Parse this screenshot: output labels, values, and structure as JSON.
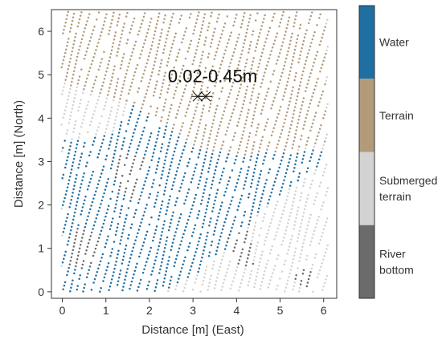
{
  "chart_data": {
    "type": "scatter",
    "title": "",
    "xlabel": "Distance [m] (East)",
    "ylabel": "Distance [m] (North)",
    "xlim": [
      -0.25,
      6.3
    ],
    "ylim": [
      -0.15,
      6.5
    ],
    "x_ticks": [
      0,
      1,
      2,
      3,
      4,
      5,
      6
    ],
    "y_ticks": [
      0,
      1,
      2,
      3,
      4,
      5,
      6
    ],
    "grid": false,
    "legend": {
      "placement": "right colorbar",
      "entries": [
        {
          "label": "Water",
          "color": "#1f6fa3"
        },
        {
          "label": "Terrain",
          "color": "#b39b7a"
        },
        {
          "label": "Submerged\nterrain",
          "color": "#d3d3d3"
        },
        {
          "label": "River\nbottom",
          "color": "#6b6b6b"
        }
      ]
    },
    "annotations": [
      {
        "text": "0.02-0.45m",
        "x": 3.45,
        "y": 4.98
      },
      {
        "marker": "asterisk-pair",
        "x": 3.2,
        "y": 4.5
      }
    ],
    "regions": {
      "terrain": [
        [
          -0.05,
          6.45
        ],
        [
          6.05,
          6.45
        ],
        [
          6.05,
          3.4
        ],
        [
          5.2,
          3.25
        ],
        [
          4.2,
          3.15
        ],
        [
          3.1,
          3.3
        ],
        [
          2.3,
          3.9
        ],
        [
          1.6,
          4.35
        ],
        [
          0.9,
          4.55
        ],
        [
          0.2,
          4.75
        ],
        [
          -0.05,
          4.85
        ]
      ],
      "water": [
        [
          0,
          0
        ],
        [
          2.3,
          0
        ],
        [
          3.2,
          0.5
        ],
        [
          3.8,
          1.0
        ],
        [
          4.6,
          1.9
        ],
        [
          5.5,
          2.6
        ],
        [
          6.1,
          3.0
        ],
        [
          6.1,
          3.3
        ],
        [
          5.2,
          3.25
        ],
        [
          4.2,
          3.15
        ],
        [
          3.1,
          3.3
        ],
        [
          2.3,
          3.9
        ],
        [
          1.6,
          4.35
        ],
        [
          1.2,
          3.7
        ],
        [
          0.6,
          3.5
        ],
        [
          0,
          3.5
        ]
      ],
      "submerged_terrain": [
        [
          -0.05,
          0
        ],
        [
          6.1,
          0
        ],
        [
          6.1,
          6.45
        ],
        [
          -0.05,
          6.45
        ]
      ],
      "river_bottom_patches": [
        [
          [
            0.1,
            0.6
          ],
          [
            0.7,
            0.5
          ],
          [
            0.9,
            1.3
          ],
          [
            0.3,
            1.5
          ]
        ],
        [
          [
            1.2,
            2.3
          ],
          [
            1.8,
            2.1
          ],
          [
            1.9,
            3.1
          ],
          [
            1.3,
            3.3
          ]
        ],
        [
          [
            3.9,
            0.6
          ],
          [
            4.4,
            0.6
          ],
          [
            4.3,
            1.4
          ],
          [
            3.8,
            1.3
          ]
        ],
        [
          [
            5.4,
            0.1
          ],
          [
            5.8,
            0.1
          ],
          [
            5.7,
            0.6
          ],
          [
            5.3,
            0.5
          ]
        ]
      ]
    },
    "stripe": {
      "angle_deg": 75,
      "spacing": 0.17
    }
  }
}
